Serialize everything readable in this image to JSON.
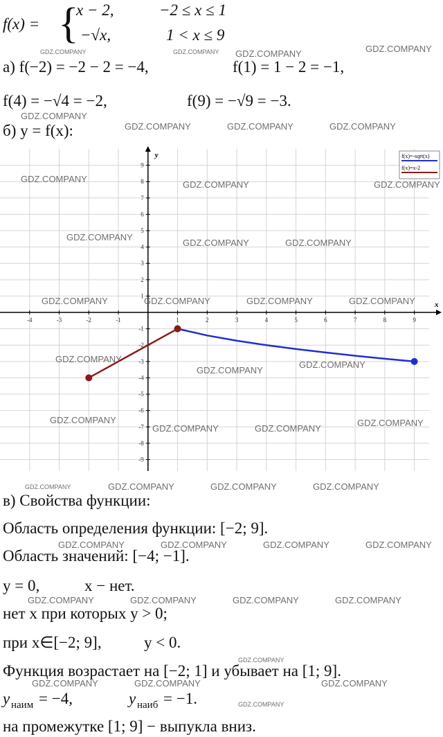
{
  "watermark": "GDZ.COMPANY",
  "formula": {
    "lhs": "f(x) =",
    "brace": "{",
    "piece1": "x − 2,",
    "cond1": "−2 ≤ x ≤ 1",
    "piece2": "−√x,",
    "cond2": "1 < x ≤ 9"
  },
  "part_a": {
    "line1": [
      "а) f(−2) = −2 − 2 = −4,",
      "f(1) = 1 − 2 = −1,"
    ],
    "line2": [
      "f(4) = −√4 = −2,",
      "f(9) = −√9 = −3."
    ]
  },
  "part_b": "б) y = f(x):",
  "chart_data": {
    "type": "line",
    "x_label": "x",
    "y_label": "y",
    "xlim": [
      -5,
      9.5
    ],
    "ylim": [
      -9.7,
      10
    ],
    "xticks": [
      -4,
      -3,
      -2,
      -1,
      1,
      2,
      3,
      4,
      5,
      6,
      7,
      8,
      9
    ],
    "yticks": [
      9,
      8,
      7,
      6,
      5,
      4,
      3,
      2,
      1,
      -1,
      -2,
      -3,
      -4,
      -5,
      -6,
      -7,
      -8,
      -9
    ],
    "grid": true,
    "legend": "top-right",
    "series": [
      {
        "name": "f(x)=-sqrt(x)",
        "color": "#1f2fd0",
        "x": [
          1,
          2,
          3,
          4,
          5,
          6,
          7,
          8,
          9
        ],
        "values": [
          -1,
          -1.41,
          -1.73,
          -2,
          -2.24,
          -2.45,
          -2.65,
          -2.83,
          -3
        ]
      },
      {
        "name": "f(x)=x-2",
        "color": "#8b1a1a",
        "x": [
          -2,
          1
        ],
        "values": [
          -4,
          -1
        ]
      }
    ]
  },
  "part_c": {
    "title": "в) Свойства функции:",
    "lines": [
      "Область определения функции: [−2; 9].",
      "Область значений: [−4; −1].",
      [
        "y = 0,",
        "x − нет."
      ],
      "нет x при которых y > 0;",
      [
        "при x∈[−2; 9],",
        "y < 0."
      ],
      "Функция возрастает на [−2; 1] и убывает на [1; 9]."
    ],
    "extremes": {
      "min_var": "y",
      "min_sub": "наим",
      "min_value": "= −4,",
      "max_var": "y",
      "max_sub": "наиб",
      "max_value": "= −1."
    },
    "convexity": "на промежутке [1; 9] − выпукла вниз."
  }
}
